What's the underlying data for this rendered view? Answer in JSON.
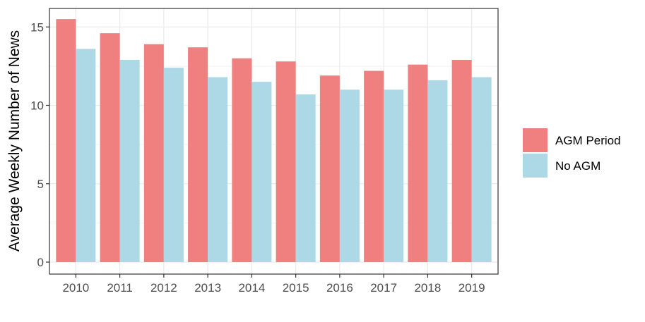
{
  "chart_data": {
    "type": "bar",
    "title": "",
    "xlabel": "",
    "ylabel": "Average Weekly Number of News",
    "categories": [
      "2010",
      "2011",
      "2012",
      "2013",
      "2014",
      "2015",
      "2016",
      "2017",
      "2018",
      "2019"
    ],
    "series": [
      {
        "name": "AGM Period",
        "color": "#F08080",
        "values": [
          15.5,
          14.6,
          13.9,
          13.7,
          13.0,
          12.8,
          11.9,
          12.2,
          12.6,
          12.9
        ]
      },
      {
        "name": "No AGM",
        "color": "#ADD8E6",
        "values": [
          13.6,
          12.9,
          12.4,
          11.8,
          11.5,
          10.7,
          11.0,
          11.0,
          11.6,
          11.8
        ]
      }
    ],
    "ylim": [
      0,
      15.9
    ],
    "yticks": [
      0,
      5,
      10,
      15
    ],
    "grid": true,
    "legend_position": "right"
  }
}
